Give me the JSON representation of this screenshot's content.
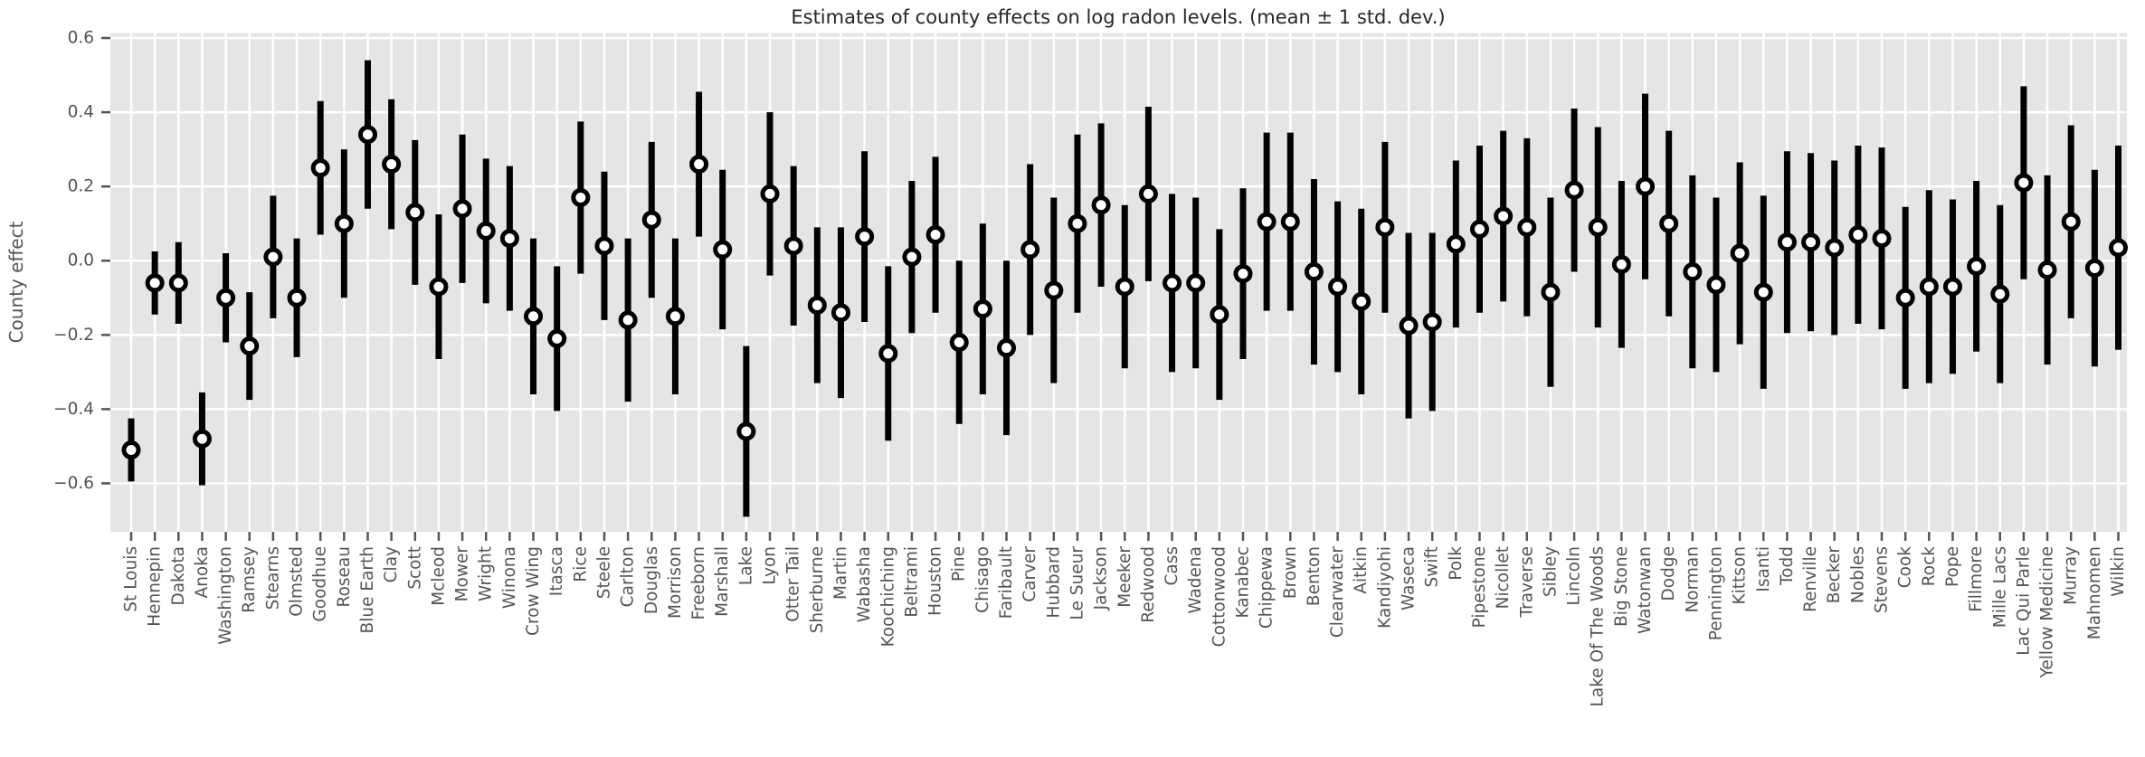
{
  "title": "Estimates of county effects on log radon levels. (mean ± 1 std. dev.)",
  "colors": {
    "figure_background": "#ffffff",
    "plot_background": "#e5e5e5",
    "gridline": "#ffffff",
    "error_bar": "#000000",
    "marker_fill": "#ffffff",
    "marker_edge": "#000000",
    "tick_text": "#555555",
    "title_text": "#262626"
  },
  "chart_data": {
    "type": "scatter",
    "subtype": "errorbar (point = mean, vertical bar = ±1 std. dev.)",
    "title": "Estimates of county effects on log radon levels. (mean ± 1 std. dev.)",
    "xlabel": "",
    "ylabel": "County effect",
    "ylim": [
      -0.7305,
      0.6135
    ],
    "yticks": [
      -0.6,
      -0.4,
      -0.2,
      0.0,
      0.2,
      0.4,
      0.6
    ],
    "ytick_labels": [
      "−0.6",
      "−0.4",
      "−0.2",
      "0.0",
      "0.2",
      "0.4",
      "0.6"
    ],
    "grid": true,
    "legend": false,
    "style": "ggplot",
    "categories": [
      "St Louis",
      "Hennepin",
      "Dakota",
      "Anoka",
      "Washington",
      "Ramsey",
      "Stearns",
      "Olmsted",
      "Goodhue",
      "Roseau",
      "Blue Earth",
      "Clay",
      "Scott",
      "Mcleod",
      "Mower",
      "Wright",
      "Winona",
      "Crow Wing",
      "Itasca",
      "Rice",
      "Steele",
      "Carlton",
      "Douglas",
      "Morrison",
      "Freeborn",
      "Marshall",
      "Lake",
      "Lyon",
      "Otter Tail",
      "Sherburne",
      "Martin",
      "Wabasha",
      "Koochiching",
      "Beltrami",
      "Houston",
      "Pine",
      "Chisago",
      "Faribault",
      "Carver",
      "Hubbard",
      "Le Sueur",
      "Jackson",
      "Meeker",
      "Redwood",
      "Cass",
      "Wadena",
      "Cottonwood",
      "Kanabec",
      "Chippewa",
      "Brown",
      "Benton",
      "Clearwater",
      "Aitkin",
      "Kandiyohi",
      "Waseca",
      "Swift",
      "Polk",
      "Pipestone",
      "Nicollet",
      "Traverse",
      "Sibley",
      "Lincoln",
      "Lake Of The Woods",
      "Big Stone",
      "Watonwan",
      "Dodge",
      "Norman",
      "Pennington",
      "Kittson",
      "Isanti",
      "Todd",
      "Renville",
      "Becker",
      "Nobles",
      "Stevens",
      "Cook",
      "Rock",
      "Pope",
      "Fillmore",
      "Mille Lacs",
      "Lac Qui Parle",
      "Yellow Medicine",
      "Murray",
      "Mahnomen",
      "Wilkin"
    ],
    "series": [
      {
        "name": "mean",
        "values": [
          -0.51,
          -0.06,
          -0.06,
          -0.48,
          -0.1,
          -0.23,
          0.01,
          -0.1,
          0.25,
          0.1,
          0.34,
          0.26,
          0.13,
          -0.07,
          0.14,
          0.08,
          0.06,
          -0.15,
          -0.21,
          0.17,
          0.04,
          -0.16,
          0.11,
          -0.15,
          0.26,
          0.03,
          -0.46,
          0.18,
          0.04,
          -0.12,
          -0.14,
          0.065,
          -0.25,
          0.01,
          0.07,
          -0.22,
          -0.13,
          -0.235,
          0.03,
          -0.08,
          0.1,
          0.15,
          -0.07,
          0.18,
          -0.06,
          -0.06,
          -0.145,
          -0.035,
          0.105,
          0.105,
          -0.03,
          -0.07,
          -0.11,
          0.09,
          -0.175,
          -0.165,
          0.045,
          0.085,
          0.12,
          0.09,
          -0.085,
          0.19,
          0.09,
          -0.01,
          0.2,
          0.1,
          -0.03,
          -0.065,
          0.02,
          -0.085,
          0.05,
          0.05,
          0.035,
          0.07,
          0.06,
          -0.1,
          -0.07,
          -0.07,
          -0.015,
          -0.09,
          0.21,
          -0.025,
          0.105,
          -0.02,
          0.035
        ]
      },
      {
        "name": "std_dev",
        "values": [
          0.085,
          0.085,
          0.11,
          0.125,
          0.12,
          0.145,
          0.165,
          0.16,
          0.18,
          0.2,
          0.2,
          0.175,
          0.195,
          0.195,
          0.2,
          0.195,
          0.195,
          0.21,
          0.195,
          0.205,
          0.2,
          0.22,
          0.21,
          0.21,
          0.195,
          0.215,
          0.23,
          0.22,
          0.215,
          0.21,
          0.23,
          0.23,
          0.235,
          0.205,
          0.21,
          0.22,
          0.23,
          0.235,
          0.23,
          0.25,
          0.24,
          0.22,
          0.22,
          0.235,
          0.24,
          0.23,
          0.23,
          0.23,
          0.24,
          0.24,
          0.25,
          0.23,
          0.25,
          0.23,
          0.25,
          0.24,
          0.225,
          0.225,
          0.23,
          0.24,
          0.255,
          0.22,
          0.27,
          0.225,
          0.25,
          0.25,
          0.26,
          0.235,
          0.245,
          0.26,
          0.245,
          0.24,
          0.235,
          0.24,
          0.245,
          0.245,
          0.26,
          0.235,
          0.23,
          0.24,
          0.26,
          0.255,
          0.26,
          0.265,
          0.275
        ]
      }
    ]
  }
}
